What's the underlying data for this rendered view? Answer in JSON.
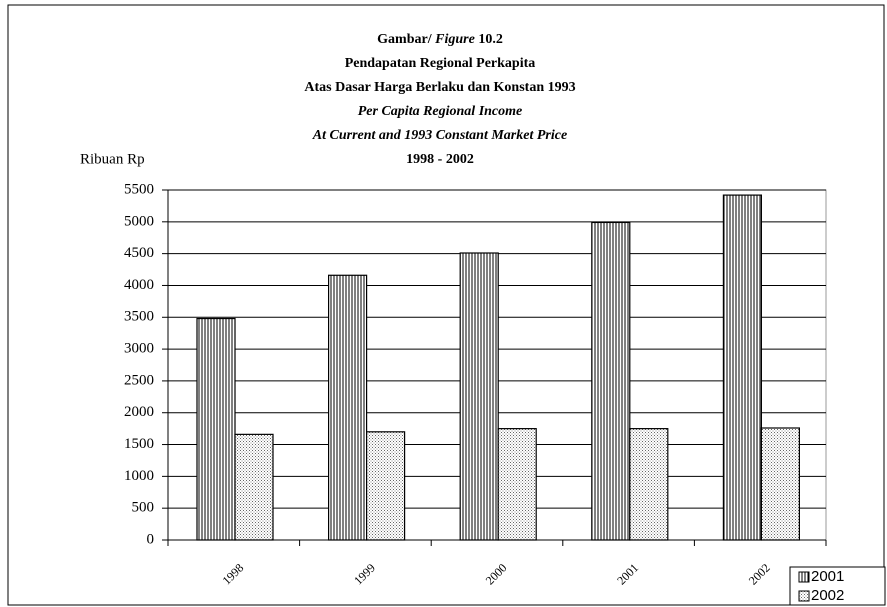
{
  "chart_data": {
    "type": "bar",
    "title_parts": [
      "Gambar/",
      "Figure",
      "10.2"
    ],
    "title_lines": [
      "Pendapatan Regional Perkapita",
      "Atas Dasar Harga Berlaku dan Konstan 1993",
      "Per Capita Regional Income",
      "At Current and 1993 Constant Market Price",
      "1998 - 2002"
    ],
    "y_label": "Ribuan Rp",
    "categories": [
      "1998",
      "1999",
      "2000",
      "2001",
      "2002"
    ],
    "series": [
      {
        "name": "2001",
        "color": "#000000",
        "pattern": "vertical-stripes",
        "values": [
          3480,
          4160,
          4510,
          4990,
          5420
        ]
      },
      {
        "name": "2002",
        "color": "#000000",
        "pattern": "dots",
        "values": [
          1660,
          1700,
          1750,
          1750,
          1760
        ]
      }
    ],
    "ylim": [
      0,
      5500
    ],
    "yticks": [
      0,
      500,
      1000,
      1500,
      2000,
      2500,
      3000,
      3500,
      4000,
      4500,
      5000,
      5500
    ],
    "grid": true,
    "legend": "bottom-right"
  }
}
